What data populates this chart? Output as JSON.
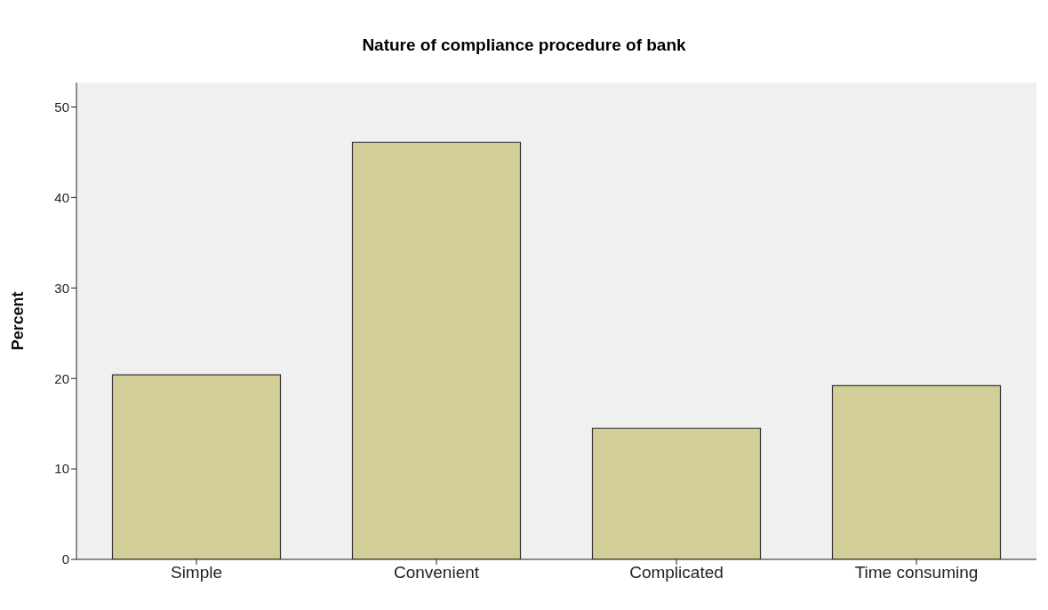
{
  "chart_data": {
    "type": "bar",
    "title": "Nature of compliance procedure of bank",
    "ylabel": "Percent",
    "categories": [
      "Simple",
      "Convenient",
      "Complicated",
      "Time consuming"
    ],
    "values": [
      20.4,
      46.1,
      14.5,
      19.2
    ],
    "color": "#d3ce97",
    "ylim": [
      0,
      52.7
    ],
    "yticks": [
      0,
      10,
      20,
      30,
      40,
      50
    ],
    "grid": false,
    "legend": false
  }
}
